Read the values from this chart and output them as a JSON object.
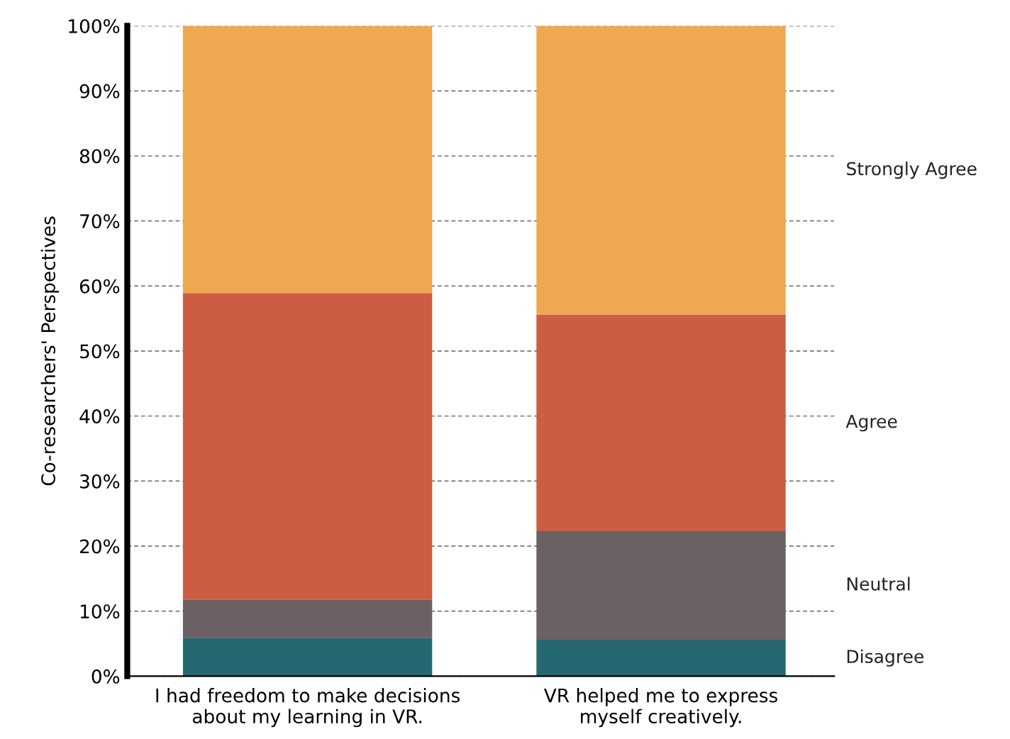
{
  "chart_data": {
    "type": "bar",
    "stacked": true,
    "ylabel": "Co-researchers' Perspectives",
    "categories": [
      "I had freedom to make decisions\nabout my learning in VR.",
      "VR helped me to express\nmyself creatively."
    ],
    "series": [
      {
        "name": "Disagree",
        "color": "#256872",
        "values": [
          5.9,
          5.6
        ]
      },
      {
        "name": "Neutral",
        "color": "#6b6063",
        "values": [
          5.9,
          16.7
        ]
      },
      {
        "name": "Agree",
        "color": "#cc5c42",
        "values": [
          47.1,
          33.3
        ]
      },
      {
        "name": "Strongly Agree",
        "color": "#eda850",
        "values": [
          41.1,
          44.4
        ]
      }
    ],
    "ylim": [
      0,
      100
    ],
    "yticks": [
      {
        "value": 0,
        "label": "0%"
      },
      {
        "value": 10,
        "label": "10%"
      },
      {
        "value": 20,
        "label": "20%"
      },
      {
        "value": 30,
        "label": "30%"
      },
      {
        "value": 40,
        "label": "40%"
      },
      {
        "value": 50,
        "label": "50%"
      },
      {
        "value": 60,
        "label": "60%"
      },
      {
        "value": 70,
        "label": "70%"
      },
      {
        "value": 80,
        "label": "80%"
      },
      {
        "value": 90,
        "label": "90%"
      },
      {
        "value": 100,
        "label": "100%"
      }
    ],
    "grid": "y"
  }
}
